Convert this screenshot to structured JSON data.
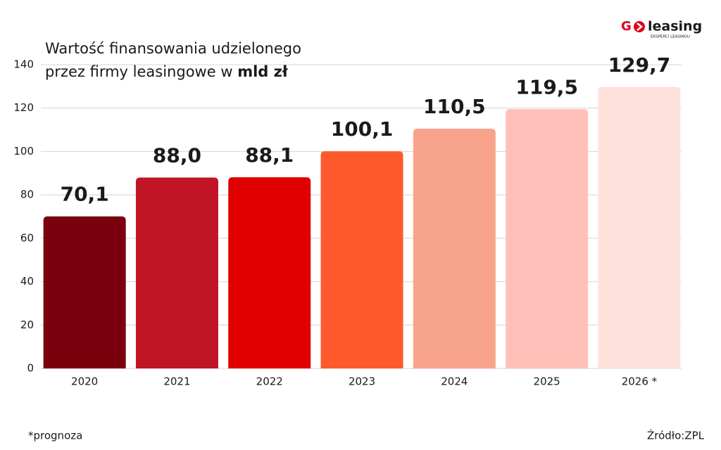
{
  "chart_data": {
    "type": "bar",
    "title_line1": "Wartość finansowania udzielonego",
    "title_line2": "przez firmy leasingowe w",
    "title_unit": "mld zł",
    "categories": [
      "2020",
      "2021",
      "2022",
      "2023",
      "2024",
      "2025",
      "2026 *"
    ],
    "values": [
      70.1,
      88.0,
      88.1,
      100.1,
      110.5,
      119.5,
      129.7
    ],
    "value_labels": [
      "70,1",
      "88,0",
      "88,1",
      "100,1",
      "110,5",
      "119,5",
      "129,7"
    ],
    "colors": [
      "#7a000d",
      "#c11424",
      "#e10000",
      "#ff5a2e",
      "#f8a48c",
      "#ffc0b9",
      "#ffe1dc"
    ],
    "ylim": [
      0,
      140
    ],
    "yticks": [
      0,
      20,
      40,
      60,
      80,
      100,
      120,
      140
    ],
    "grid": true,
    "footnote": "*prognoza",
    "source": "Źródło:ZPL",
    "logo_prefix": "G",
    "logo_text": "leasing",
    "logo_tagline": "EKSPERCI LEASINGU"
  }
}
